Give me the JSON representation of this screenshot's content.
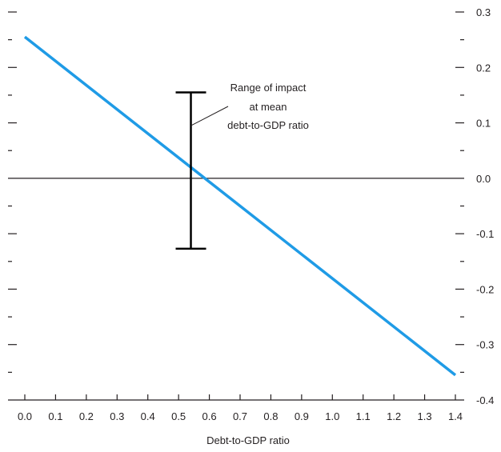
{
  "chart_data": {
    "type": "line",
    "title": "",
    "xlabel": "Debt-to-GDP ratio",
    "ylabel": "",
    "xlim": [
      0.0,
      1.4
    ],
    "ylim": [
      -0.4,
      0.3
    ],
    "x_ticks": [
      "0.0",
      "0.1",
      "0.2",
      "0.3",
      "0.4",
      "0.5",
      "0.6",
      "0.7",
      "0.8",
      "0.9",
      "1.0",
      "1.1",
      "1.2",
      "1.3",
      "1.4"
    ],
    "y_ticks": [
      "0.3",
      "0.2",
      "0.1",
      "0.0",
      "-0.1",
      "-0.2",
      "-0.3",
      "-0.4"
    ],
    "grid": false,
    "series": [
      {
        "x": [
          0.0,
          1.4
        ],
        "y": [
          0.255,
          -0.355
        ],
        "color": "#1f9be6"
      }
    ],
    "range_bar": {
      "x": 0.54,
      "y_low": -0.127,
      "y_high": 0.155
    },
    "annotation": {
      "lines": [
        "Range of impact",
        "at mean",
        "debt-to-GDP ratio"
      ]
    }
  }
}
